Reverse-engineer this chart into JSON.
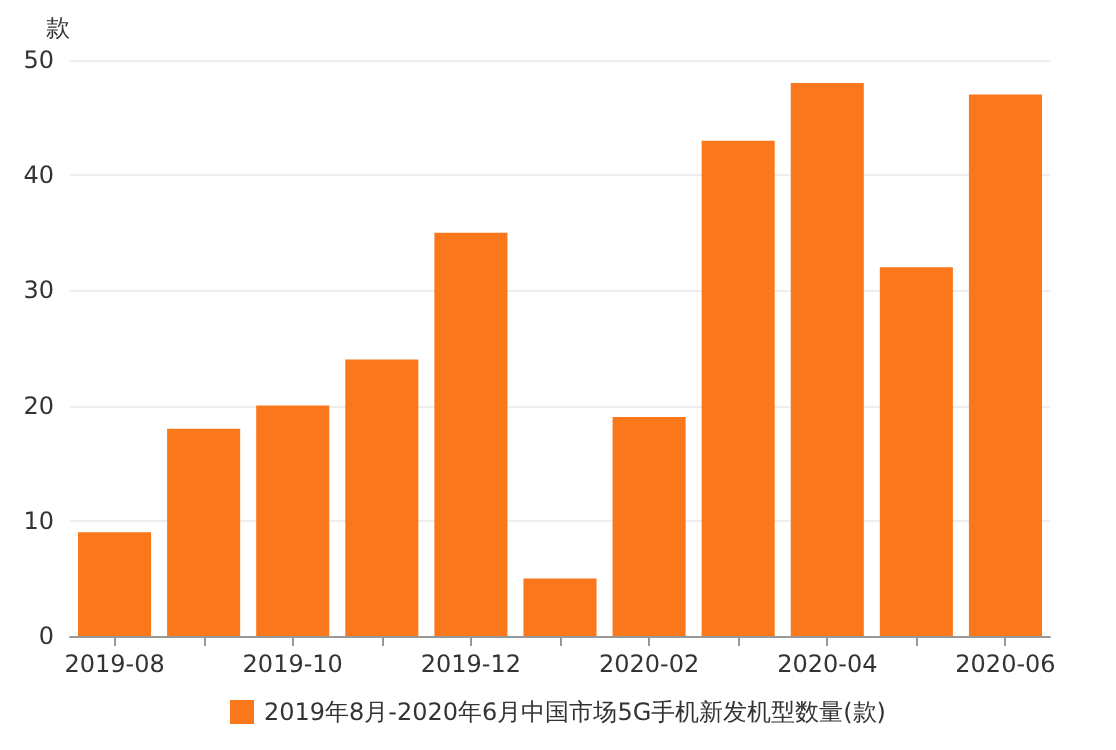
{
  "chart_data": {
    "type": "bar",
    "ylabel": "款",
    "categories": [
      "2019-08",
      null,
      "2019-10",
      null,
      "2019-12",
      null,
      "2020-02",
      null,
      "2020-04",
      null,
      "2020-06"
    ],
    "series": [
      {
        "name": "2019年8月-2020年6月中国市场5G手机新发机型数量(款)",
        "color": "#fa771c",
        "values": [
          9,
          18,
          20,
          24,
          35,
          5,
          19,
          43,
          48,
          32,
          47
        ]
      }
    ],
    "ylim": [
      0,
      50
    ],
    "yticks": [
      0,
      10,
      20,
      30,
      40,
      50
    ],
    "grid": "y",
    "legend": "bottom"
  }
}
